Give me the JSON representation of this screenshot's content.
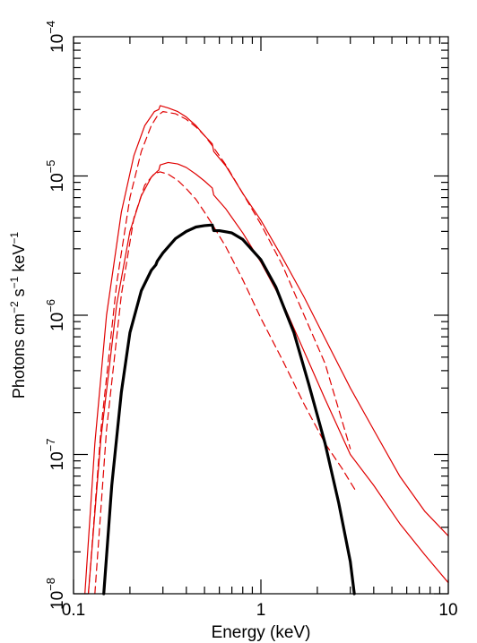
{
  "chart_data": {
    "type": "line",
    "title": "",
    "xlabel": "Energy (keV)",
    "ylabel": {
      "parts": [
        {
          "text": "Photons cm",
          "sup": false
        },
        {
          "text": "−2",
          "sup": true
        },
        {
          "text": " s",
          "sup": false
        },
        {
          "text": "−1",
          "sup": true
        },
        {
          "text": " keV",
          "sup": false
        },
        {
          "text": "−1",
          "sup": true
        }
      ]
    },
    "x_scale": "log",
    "y_scale": "log",
    "xlim": [
      0.1,
      10
    ],
    "ylim": [
      1e-08,
      0.0001
    ],
    "x_ticks": [
      {
        "value": 0.1,
        "label": "0.1"
      },
      {
        "value": 1,
        "label": "1"
      },
      {
        "value": 10,
        "label": "10"
      }
    ],
    "y_ticks": [
      {
        "value": 1e-08,
        "base": "10",
        "exp": "−8"
      },
      {
        "value": 1e-07,
        "base": "10",
        "exp": "−7"
      },
      {
        "value": 1e-06,
        "base": "10",
        "exp": "−6"
      },
      {
        "value": 1e-05,
        "base": "10",
        "exp": "−5"
      },
      {
        "value": 0.0001,
        "base": "10",
        "exp": "−4"
      }
    ],
    "grid": false,
    "legend": "none",
    "series": [
      {
        "color": "#e00000",
        "style": "solid",
        "width": 1.2,
        "x": [
          0.115,
          0.13,
          0.15,
          0.18,
          0.21,
          0.24,
          0.27,
          0.285,
          0.29,
          0.32,
          0.36,
          0.4,
          0.45,
          0.5,
          0.55,
          0.56,
          0.65,
          0.8,
          1.0,
          1.3,
          1.7,
          2.2,
          3.0,
          4.0,
          5.5,
          7.5,
          10.0
        ],
        "y": [
          1e-08,
          1.2e-07,
          1e-06,
          5.5e-06,
          1.4e-05,
          2.3e-05,
          2.9e-05,
          3e-05,
          3.2e-05,
          3.08e-05,
          2.9e-05,
          2.65e-05,
          2.3e-05,
          1.95e-05,
          1.7e-05,
          1.5e-05,
          1.18e-05,
          7.5e-06,
          4.8e-06,
          2.6e-06,
          1.35e-06,
          6.8e-07,
          3e-07,
          1.5e-07,
          7e-08,
          3.9e-08,
          2.6e-08
        ]
      },
      {
        "color": "#e00000",
        "style": "dashed",
        "width": 1.2,
        "x": [
          0.12,
          0.14,
          0.17,
          0.2,
          0.23,
          0.26,
          0.28,
          0.3,
          0.35,
          0.4,
          0.45,
          0.5,
          0.55,
          0.65,
          0.8,
          1.0,
          1.3,
          1.7,
          2.2,
          3.0
        ],
        "y": [
          1e-08,
          1.5e-07,
          1.7e-06,
          7e-06,
          1.5e-05,
          2.3e-05,
          2.7e-05,
          2.9e-05,
          2.8e-05,
          2.55e-05,
          2.25e-05,
          1.95e-05,
          1.65e-05,
          1.2e-05,
          7.5e-06,
          4.5e-06,
          2.3e-06,
          1e-06,
          4.5e-07,
          1.1e-07
        ]
      },
      {
        "color": "#e00000",
        "style": "solid",
        "width": 1.2,
        "x": [
          0.12,
          0.14,
          0.17,
          0.2,
          0.23,
          0.26,
          0.28,
          0.285,
          0.29,
          0.32,
          0.36,
          0.4,
          0.45,
          0.5,
          0.55,
          0.56,
          0.65,
          0.8,
          1.0,
          1.3,
          1.7,
          2.2,
          3.0,
          4.0,
          5.5,
          7.5,
          10.0
        ],
        "y": [
          1e-08,
          1.3e-07,
          1.2e-06,
          4e-06,
          7.2e-06,
          9.8e-06,
          1.08e-05,
          1.1e-05,
          1.2e-05,
          1.25e-05,
          1.22e-05,
          1.15e-05,
          1.03e-05,
          9.2e-06,
          8.2e-06,
          7.3e-06,
          5.8e-06,
          3.9e-06,
          2.4e-06,
          1.25e-06,
          5.5e-07,
          2.5e-07,
          1e-07,
          6e-08,
          3.2e-08,
          1.9e-08,
          1.2e-08
        ]
      },
      {
        "color": "#e00000",
        "style": "dashed",
        "width": 1.2,
        "x": [
          0.13,
          0.15,
          0.18,
          0.21,
          0.24,
          0.27,
          0.29,
          0.32,
          0.36,
          0.4,
          0.45,
          0.5,
          0.55,
          0.65,
          0.8,
          1.0,
          1.3,
          1.7,
          2.2,
          2.7,
          3.2
        ],
        "y": [
          1e-08,
          1.5e-07,
          1.4e-06,
          5e-06,
          8.6e-06,
          1.04e-05,
          1.07e-05,
          1.03e-05,
          9.3e-06,
          8.1e-06,
          6.8e-06,
          5.5e-06,
          4.5e-06,
          3.1e-06,
          1.8e-06,
          9.5e-07,
          4.8e-07,
          2.3e-07,
          1.2e-07,
          8e-08,
          5.5e-08
        ]
      },
      {
        "color": "#000000",
        "style": "solid",
        "width": 3.2,
        "x": [
          0.145,
          0.16,
          0.18,
          0.2,
          0.23,
          0.26,
          0.275,
          0.28,
          0.3,
          0.35,
          0.4,
          0.45,
          0.5,
          0.55,
          0.56,
          0.6,
          0.7,
          0.8,
          1.0,
          1.2,
          1.5,
          1.8,
          2.2,
          2.6,
          3.0,
          3.15
        ],
        "y": [
          1e-08,
          6e-08,
          2.8e-07,
          7.5e-07,
          1.5e-06,
          2.1e-06,
          2.3e-06,
          2.45e-06,
          2.8e-06,
          3.55e-06,
          4e-06,
          4.3e-06,
          4.4e-06,
          4.45e-06,
          4.05e-06,
          4.05e-06,
          3.9e-06,
          3.5e-06,
          2.5e-06,
          1.6e-06,
          7.5e-07,
          3.2e-07,
          1.2e-07,
          4.5e-08,
          1.7e-08,
          1e-08
        ]
      }
    ]
  }
}
